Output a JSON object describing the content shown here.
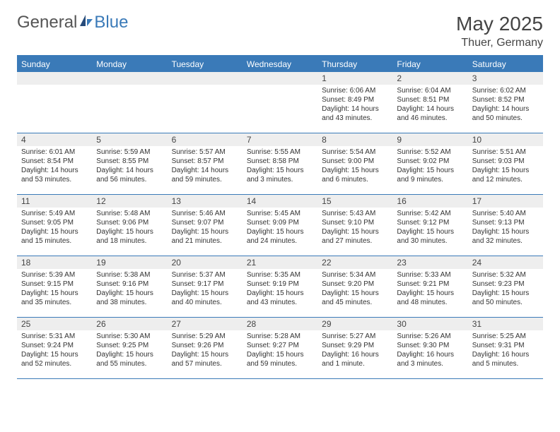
{
  "logo": {
    "general": "General",
    "blue": "Blue"
  },
  "title": "May 2025",
  "location": "Thuer, Germany",
  "colors": {
    "accent": "#3a7ab8",
    "headerBg": "#3a7ab8",
    "dayRowBg": "#eeeeee",
    "text": "#333333",
    "pageBg": "#ffffff"
  },
  "dayNames": [
    "Sunday",
    "Monday",
    "Tuesday",
    "Wednesday",
    "Thursday",
    "Friday",
    "Saturday"
  ],
  "weeks": [
    [
      {
        "n": "",
        "sr": "",
        "ss": "",
        "dl1": "",
        "dl2": ""
      },
      {
        "n": "",
        "sr": "",
        "ss": "",
        "dl1": "",
        "dl2": ""
      },
      {
        "n": "",
        "sr": "",
        "ss": "",
        "dl1": "",
        "dl2": ""
      },
      {
        "n": "",
        "sr": "",
        "ss": "",
        "dl1": "",
        "dl2": ""
      },
      {
        "n": "1",
        "sr": "Sunrise: 6:06 AM",
        "ss": "Sunset: 8:49 PM",
        "dl1": "Daylight: 14 hours",
        "dl2": "and 43 minutes."
      },
      {
        "n": "2",
        "sr": "Sunrise: 6:04 AM",
        "ss": "Sunset: 8:51 PM",
        "dl1": "Daylight: 14 hours",
        "dl2": "and 46 minutes."
      },
      {
        "n": "3",
        "sr": "Sunrise: 6:02 AM",
        "ss": "Sunset: 8:52 PM",
        "dl1": "Daylight: 14 hours",
        "dl2": "and 50 minutes."
      }
    ],
    [
      {
        "n": "4",
        "sr": "Sunrise: 6:01 AM",
        "ss": "Sunset: 8:54 PM",
        "dl1": "Daylight: 14 hours",
        "dl2": "and 53 minutes."
      },
      {
        "n": "5",
        "sr": "Sunrise: 5:59 AM",
        "ss": "Sunset: 8:55 PM",
        "dl1": "Daylight: 14 hours",
        "dl2": "and 56 minutes."
      },
      {
        "n": "6",
        "sr": "Sunrise: 5:57 AM",
        "ss": "Sunset: 8:57 PM",
        "dl1": "Daylight: 14 hours",
        "dl2": "and 59 minutes."
      },
      {
        "n": "7",
        "sr": "Sunrise: 5:55 AM",
        "ss": "Sunset: 8:58 PM",
        "dl1": "Daylight: 15 hours",
        "dl2": "and 3 minutes."
      },
      {
        "n": "8",
        "sr": "Sunrise: 5:54 AM",
        "ss": "Sunset: 9:00 PM",
        "dl1": "Daylight: 15 hours",
        "dl2": "and 6 minutes."
      },
      {
        "n": "9",
        "sr": "Sunrise: 5:52 AM",
        "ss": "Sunset: 9:02 PM",
        "dl1": "Daylight: 15 hours",
        "dl2": "and 9 minutes."
      },
      {
        "n": "10",
        "sr": "Sunrise: 5:51 AM",
        "ss": "Sunset: 9:03 PM",
        "dl1": "Daylight: 15 hours",
        "dl2": "and 12 minutes."
      }
    ],
    [
      {
        "n": "11",
        "sr": "Sunrise: 5:49 AM",
        "ss": "Sunset: 9:05 PM",
        "dl1": "Daylight: 15 hours",
        "dl2": "and 15 minutes."
      },
      {
        "n": "12",
        "sr": "Sunrise: 5:48 AM",
        "ss": "Sunset: 9:06 PM",
        "dl1": "Daylight: 15 hours",
        "dl2": "and 18 minutes."
      },
      {
        "n": "13",
        "sr": "Sunrise: 5:46 AM",
        "ss": "Sunset: 9:07 PM",
        "dl1": "Daylight: 15 hours",
        "dl2": "and 21 minutes."
      },
      {
        "n": "14",
        "sr": "Sunrise: 5:45 AM",
        "ss": "Sunset: 9:09 PM",
        "dl1": "Daylight: 15 hours",
        "dl2": "and 24 minutes."
      },
      {
        "n": "15",
        "sr": "Sunrise: 5:43 AM",
        "ss": "Sunset: 9:10 PM",
        "dl1": "Daylight: 15 hours",
        "dl2": "and 27 minutes."
      },
      {
        "n": "16",
        "sr": "Sunrise: 5:42 AM",
        "ss": "Sunset: 9:12 PM",
        "dl1": "Daylight: 15 hours",
        "dl2": "and 30 minutes."
      },
      {
        "n": "17",
        "sr": "Sunrise: 5:40 AM",
        "ss": "Sunset: 9:13 PM",
        "dl1": "Daylight: 15 hours",
        "dl2": "and 32 minutes."
      }
    ],
    [
      {
        "n": "18",
        "sr": "Sunrise: 5:39 AM",
        "ss": "Sunset: 9:15 PM",
        "dl1": "Daylight: 15 hours",
        "dl2": "and 35 minutes."
      },
      {
        "n": "19",
        "sr": "Sunrise: 5:38 AM",
        "ss": "Sunset: 9:16 PM",
        "dl1": "Daylight: 15 hours",
        "dl2": "and 38 minutes."
      },
      {
        "n": "20",
        "sr": "Sunrise: 5:37 AM",
        "ss": "Sunset: 9:17 PM",
        "dl1": "Daylight: 15 hours",
        "dl2": "and 40 minutes."
      },
      {
        "n": "21",
        "sr": "Sunrise: 5:35 AM",
        "ss": "Sunset: 9:19 PM",
        "dl1": "Daylight: 15 hours",
        "dl2": "and 43 minutes."
      },
      {
        "n": "22",
        "sr": "Sunrise: 5:34 AM",
        "ss": "Sunset: 9:20 PM",
        "dl1": "Daylight: 15 hours",
        "dl2": "and 45 minutes."
      },
      {
        "n": "23",
        "sr": "Sunrise: 5:33 AM",
        "ss": "Sunset: 9:21 PM",
        "dl1": "Daylight: 15 hours",
        "dl2": "and 48 minutes."
      },
      {
        "n": "24",
        "sr": "Sunrise: 5:32 AM",
        "ss": "Sunset: 9:23 PM",
        "dl1": "Daylight: 15 hours",
        "dl2": "and 50 minutes."
      }
    ],
    [
      {
        "n": "25",
        "sr": "Sunrise: 5:31 AM",
        "ss": "Sunset: 9:24 PM",
        "dl1": "Daylight: 15 hours",
        "dl2": "and 52 minutes."
      },
      {
        "n": "26",
        "sr": "Sunrise: 5:30 AM",
        "ss": "Sunset: 9:25 PM",
        "dl1": "Daylight: 15 hours",
        "dl2": "and 55 minutes."
      },
      {
        "n": "27",
        "sr": "Sunrise: 5:29 AM",
        "ss": "Sunset: 9:26 PM",
        "dl1": "Daylight: 15 hours",
        "dl2": "and 57 minutes."
      },
      {
        "n": "28",
        "sr": "Sunrise: 5:28 AM",
        "ss": "Sunset: 9:27 PM",
        "dl1": "Daylight: 15 hours",
        "dl2": "and 59 minutes."
      },
      {
        "n": "29",
        "sr": "Sunrise: 5:27 AM",
        "ss": "Sunset: 9:29 PM",
        "dl1": "Daylight: 16 hours",
        "dl2": "and 1 minute."
      },
      {
        "n": "30",
        "sr": "Sunrise: 5:26 AM",
        "ss": "Sunset: 9:30 PM",
        "dl1": "Daylight: 16 hours",
        "dl2": "and 3 minutes."
      },
      {
        "n": "31",
        "sr": "Sunrise: 5:25 AM",
        "ss": "Sunset: 9:31 PM",
        "dl1": "Daylight: 16 hours",
        "dl2": "and 5 minutes."
      }
    ]
  ]
}
